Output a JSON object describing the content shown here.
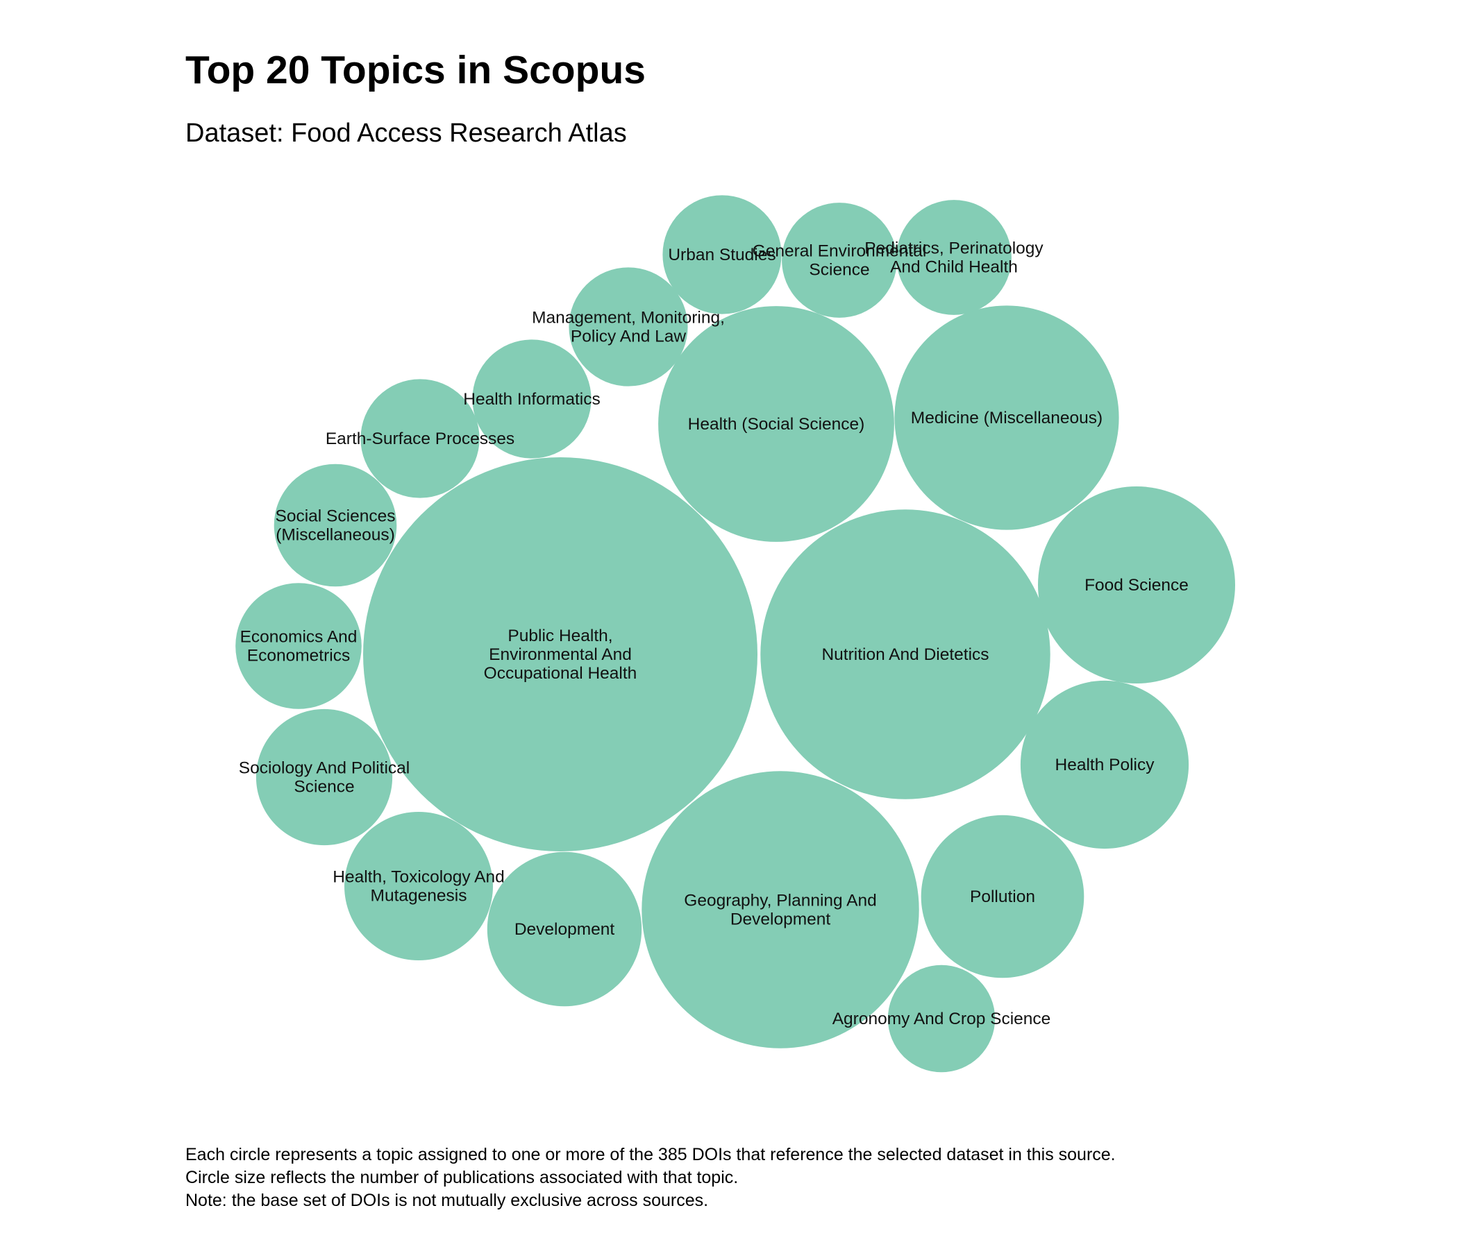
{
  "chart_data": {
    "type": "bubble",
    "title": "Top 20 Topics in Scopus",
    "subtitle": "Dataset: Food Access Research Atlas",
    "color": "#84cdb5",
    "series": [
      {
        "label": "Public Health, Environmental And Occupational Health",
        "value": 176,
        "lines": [
          "Public Health,",
          "Environmental And",
          "Occupational Health"
        ]
      },
      {
        "label": "Nutrition And Dietetics",
        "value": 95,
        "lines": [
          "Nutrition And Dietetics"
        ]
      },
      {
        "label": "Geography, Planning And Development",
        "value": 87,
        "lines": [
          "Geography, Planning And",
          "Development"
        ]
      },
      {
        "label": "Health (Social Science)",
        "value": 63,
        "lines": [
          "Health (Social Science)"
        ]
      },
      {
        "label": "Medicine (Miscellaneous)",
        "value": 57,
        "lines": [
          "Medicine (Miscellaneous)"
        ]
      },
      {
        "label": "Food Science",
        "value": 44,
        "lines": [
          "Food Science"
        ]
      },
      {
        "label": "Health Policy",
        "value": 32,
        "lines": [
          "Health Policy"
        ]
      },
      {
        "label": "Pollution",
        "value": 30,
        "lines": [
          "Pollution"
        ]
      },
      {
        "label": "Development",
        "value": 27,
        "lines": [
          "Development"
        ]
      },
      {
        "label": "Health, Toxicology And Mutagenesis",
        "value": 25,
        "lines": [
          "Health, Toxicology And",
          "Mutagenesis"
        ]
      },
      {
        "label": "Sociology And Political Science",
        "value": 21,
        "lines": [
          "Sociology And Political",
          "Science"
        ]
      },
      {
        "label": "Social Sciences (Miscellaneous)",
        "value": 17,
        "lines": [
          "Social Sciences",
          "(Miscellaneous)"
        ]
      },
      {
        "label": "Economics And Econometrics",
        "value": 18,
        "lines": [
          "Economics And",
          "Econometrics"
        ]
      },
      {
        "label": "Earth-Surface Processes",
        "value": 16,
        "lines": [
          "Earth-Surface Processes"
        ]
      },
      {
        "label": "Health Informatics",
        "value": 16,
        "lines": [
          "Health Informatics"
        ]
      },
      {
        "label": "Management, Monitoring, Policy And Law",
        "value": 16,
        "lines": [
          "Management, Monitoring,",
          "Policy And Law"
        ]
      },
      {
        "label": "Urban Studies",
        "value": 16,
        "lines": [
          "Urban Studies"
        ]
      },
      {
        "label": "General Environmental Science",
        "value": 15,
        "lines": [
          "General Environmental",
          "Science"
        ]
      },
      {
        "label": "Pediatrics, Perinatology And Child Health",
        "value": 15,
        "lines": [
          "Pediatrics, Perinatology",
          "And Child Health"
        ]
      },
      {
        "label": "Agronomy And Crop Science",
        "value": 13,
        "lines": [
          "Agronomy And Crop Science"
        ]
      }
    ]
  },
  "footnote": {
    "line1": "Each circle represents a topic assigned to one or more of the 385 DOIs that reference the selected dataset in this source.",
    "line2": "Circle size reflects the number of publications associated with that topic.",
    "line3": "Note: the base set of DOIs is not mutually exclusive across sources."
  }
}
